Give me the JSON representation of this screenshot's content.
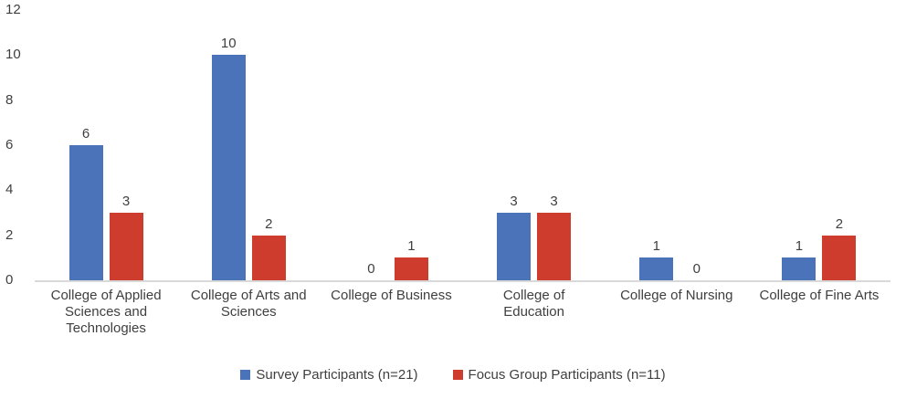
{
  "chart_data": {
    "type": "bar",
    "title": "",
    "categories": [
      "College of Applied Sciences and Technologies",
      "College of Arts and Sciences",
      "College of Business",
      "College of Education",
      "College of Nursing",
      "College of Fine Arts"
    ],
    "x_axis_display": [
      "College of Applied\nSciences and\nTechnologies",
      "College of Arts and\nSciences",
      "College of Business",
      "College of\nEducation",
      "College of Nursing",
      "College of Fine Arts"
    ],
    "series": [
      {
        "name": "Survey Participants (n=21)",
        "color": "#4b73b9",
        "values": [
          6,
          10,
          0,
          3,
          1,
          1
        ]
      },
      {
        "name": "Focus Group Participants (n=11)",
        "color": "#cd3c2d",
        "values": [
          3,
          2,
          1,
          3,
          0,
          2
        ]
      }
    ],
    "xlabel": "",
    "ylabel": "",
    "ylim": [
      0,
      12
    ],
    "yticks": [
      0,
      2,
      4,
      6,
      8,
      10,
      12
    ],
    "grid": "off",
    "legend_position": "bottom",
    "value_labels": "on",
    "axis_line_color": "#d9d9d9",
    "text_color": "#3f3f3f"
  }
}
